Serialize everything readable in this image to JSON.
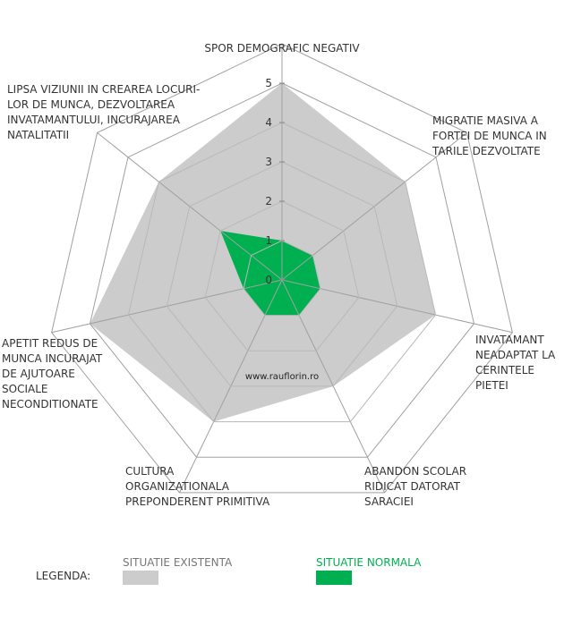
{
  "chart_data": {
    "type": "radar",
    "categories": [
      "SPOR DEMOGRAFIC NEGATIV",
      "MIGRATIE MASIVA A FORTEI DE MUNCA IN TARILE DEZVOLTATE",
      "INVATAMANT NEADAPTAT LA CERINTELE PIETEI",
      "ABANDON SCOLAR RIDICAT DATORAT SARACIEI",
      "CULTURA ORGANIZATIONALA PREPONDERENT PRIMITIVA",
      "APETIT REDUS DE MUNCA INCURAJAT DE AJUTOARE SOCIALE NECONDITIONATE",
      "LIPSA VIZIUNII IN CREAREA LOCURI-LOR DE MUNCA, DEZVOLTAREA INVATAMANTULUI, INCURAJAREA NATALITATII"
    ],
    "category_lines": [
      [
        "SPOR DEMOGRAFIC NEGATIV"
      ],
      [
        "MIGRATIE MASIVA A",
        "FORTEI DE MUNCA IN",
        "TARILE DEZVOLTATE"
      ],
      [
        "INVATAMANT",
        "NEADAPTAT LA",
        "CERINTELE",
        "PIETEI"
      ],
      [
        "ABANDON SCOLAR",
        "RIDICAT DATORAT",
        "SARACIEI"
      ],
      [
        "CULTURA",
        "ORGANIZATIONALA",
        "PREPONDERENT PRIMITIVA"
      ],
      [
        "APETIT REDUS DE",
        "MUNCA INCURAJAT",
        "DE AJUTOARE",
        "SOCIALE",
        "NECONDITIONATE"
      ],
      [
        "LIPSA VIZIUNII IN CREAREA LOCURI-",
        "LOR DE MUNCA, DEZVOLTAREA",
        "INVATAMANTULUI, INCURAJAREA",
        "NATALITATII"
      ]
    ],
    "series": [
      {
        "name": "SITUATIE EXISTENTA",
        "color": "#cccccc",
        "values": [
          5,
          4,
          4,
          3,
          4,
          5,
          4
        ]
      },
      {
        "name": "SITUATIE NORMALA",
        "color": "#00b050",
        "values": [
          1,
          1,
          1,
          1,
          1,
          1,
          2
        ]
      }
    ],
    "ticks": [
      "0",
      "1",
      "2",
      "3",
      "4",
      "5"
    ],
    "rlim": [
      0,
      5
    ],
    "rings": [
      5,
      6
    ],
    "grid_color": "#a0a0a0",
    "watermark": "www.rauflorin.ro"
  },
  "legend": {
    "title": "LEGENDA:"
  }
}
